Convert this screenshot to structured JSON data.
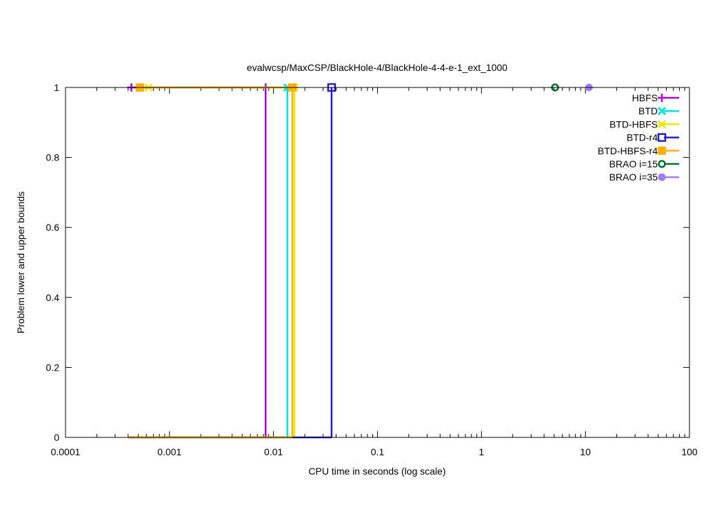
{
  "chart_data": {
    "type": "line",
    "title": "evalwcsp/MaxCSP/BlackHole-4/BlackHole-4-4-e-1_ext_1000",
    "xlabel": "CPU time in seconds (log scale)",
    "ylabel": "Problem lower and upper bounds",
    "xscale": "log",
    "xlim": [
      0.0001,
      100
    ],
    "ylim": [
      0,
      1
    ],
    "xticks": [
      {
        "v": 0.0001,
        "label": "0.0001"
      },
      {
        "v": 0.001,
        "label": "0.001"
      },
      {
        "v": 0.01,
        "label": "0.01"
      },
      {
        "v": 0.1,
        "label": "0.1"
      },
      {
        "v": 1,
        "label": "1"
      },
      {
        "v": 10,
        "label": "10"
      },
      {
        "v": 100,
        "label": "100"
      }
    ],
    "yticks": [
      {
        "v": 0,
        "label": "0"
      },
      {
        "v": 0.2,
        "label": "0.2"
      },
      {
        "v": 0.4,
        "label": "0.4"
      },
      {
        "v": 0.6,
        "label": "0.6"
      },
      {
        "v": 0.8,
        "label": "0.8"
      },
      {
        "v": 1,
        "label": "1"
      }
    ],
    "legend_position": "top-right",
    "series": [
      {
        "name": "HBFS",
        "color": "#b000e0",
        "marker": "plus",
        "upper": [
          [
            0.00043,
            1
          ],
          [
            0.0084,
            1
          ]
        ],
        "lower": [
          [
            0.0004,
            0
          ],
          [
            0.0084,
            0
          ]
        ]
      },
      {
        "name": "BTD",
        "color": "#00e0e0",
        "marker": "x",
        "upper": [
          [
            0.0136,
            1
          ]
        ],
        "lower": [
          [
            0.0004,
            0
          ],
          [
            0.0136,
            0
          ]
        ]
      },
      {
        "name": "BTD-HBFS",
        "color": "#e8e800",
        "marker": "star",
        "upper": [
          [
            0.00063,
            1
          ],
          [
            0.0159,
            1
          ]
        ],
        "lower": [
          [
            0.0004,
            0
          ],
          [
            0.0159,
            0
          ]
        ]
      },
      {
        "name": "BTD-r4",
        "color": "#2020c0",
        "marker": "open-square",
        "upper": [
          [
            0.0362,
            1
          ]
        ],
        "lower": [
          [
            0.0004,
            0
          ],
          [
            0.0362,
            0
          ]
        ]
      },
      {
        "name": "BTD-HBFS-r4",
        "color": "#ffb000",
        "marker": "filled-square",
        "upper": [
          [
            0.00052,
            1
          ],
          [
            0.0152,
            1
          ]
        ],
        "lower": [
          [
            0.0004,
            0
          ],
          [
            0.0152,
            0
          ]
        ]
      },
      {
        "name": "BRAO i=15",
        "color": "#007030",
        "marker": "open-circle",
        "upper": [
          [
            5.1,
            1
          ]
        ],
        "lower": []
      },
      {
        "name": "BRAO i=35",
        "color": "#a080f0",
        "marker": "filled-circle",
        "upper": [
          [
            10.8,
            1
          ]
        ],
        "lower": []
      }
    ]
  }
}
